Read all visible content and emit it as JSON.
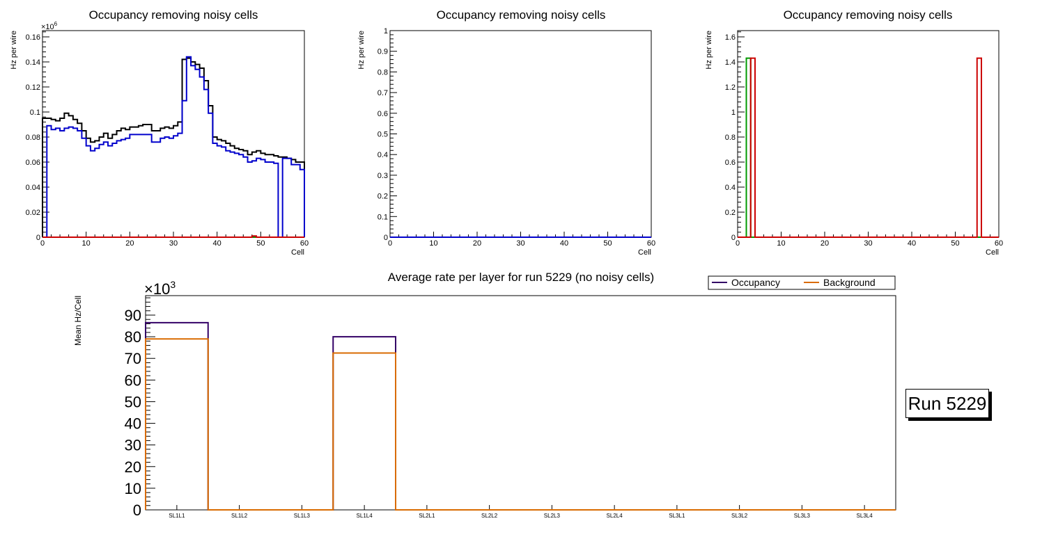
{
  "colors": {
    "black": "#000000",
    "blue": "#0000cc",
    "green": "#009900",
    "red": "#cc0000",
    "purple": "#330066",
    "orange": "#d96b00"
  },
  "run_label": "Run 5229",
  "chart_data": [
    {
      "type": "line",
      "title": "Occupancy removing noisy cells",
      "xlabel": "Cell",
      "ylabel": "Hz per wire",
      "xlim": [
        0,
        60
      ],
      "ylim": [
        0,
        0.165
      ],
      "exponent": "6",
      "xticks": [
        0,
        10,
        20,
        30,
        40,
        50,
        60
      ],
      "xtick_labels": [
        "0",
        "10",
        "20",
        "30",
        "40",
        "50",
        "60"
      ],
      "yticks": [
        0,
        0.02,
        0.04,
        0.06,
        0.08,
        0.1,
        0.12,
        0.14,
        0.16
      ],
      "ytick_labels": [
        "0",
        "0.02",
        "0.04",
        "0.06",
        "0.08",
        "0.1",
        "0.12",
        "0.14",
        "0.16"
      ],
      "series": [
        {
          "name": "black",
          "color": "#000000",
          "values": [
            0.095,
            0.095,
            0.094,
            0.093,
            0.095,
            0.099,
            0.097,
            0.094,
            0.091,
            0.085,
            0.079,
            0.076,
            0.077,
            0.08,
            0.083,
            0.079,
            0.082,
            0.085,
            0.087,
            0.086,
            0.088,
            0.088,
            0.089,
            0.09,
            0.09,
            0.085,
            0.085,
            0.087,
            0.088,
            0.087,
            0.089,
            0.092,
            0.142,
            0.143,
            0.14,
            0.138,
            0.135,
            0.125,
            0.105,
            0.08,
            0.078,
            0.077,
            0.075,
            0.073,
            0.071,
            0.07,
            0.069,
            0.066,
            0.068,
            0.069,
            0.067,
            0.066,
            0.066,
            0.065,
            0.064,
            0.064,
            0.063,
            0.062,
            0.06,
            0.06
          ]
        },
        {
          "name": "blue",
          "color": "#0000cc",
          "values": [
            0.0,
            0.089,
            0.086,
            0.087,
            0.085,
            0.087,
            0.088,
            0.087,
            0.085,
            0.079,
            0.073,
            0.069,
            0.071,
            0.074,
            0.076,
            0.073,
            0.075,
            0.077,
            0.078,
            0.079,
            0.082,
            0.082,
            0.082,
            0.082,
            0.082,
            0.076,
            0.076,
            0.079,
            0.08,
            0.079,
            0.081,
            0.083,
            0.109,
            0.144,
            0.137,
            0.134,
            0.128,
            0.118,
            0.099,
            0.075,
            0.073,
            0.072,
            0.069,
            0.068,
            0.067,
            0.066,
            0.064,
            0.06,
            0.061,
            0.063,
            0.062,
            0.06,
            0.06,
            0.059,
            0.0,
            0.063,
            0.063,
            0.058,
            0.058,
            0.054
          ]
        },
        {
          "name": "green",
          "color": "#009900",
          "values": [
            0,
            0,
            0,
            0,
            0,
            0,
            0,
            0,
            0,
            0,
            0,
            0,
            0,
            0,
            0,
            0,
            0,
            0,
            0,
            0,
            0,
            0,
            0,
            0,
            0,
            0,
            0,
            0,
            0,
            0,
            0,
            0,
            0,
            0,
            0,
            0,
            0,
            0,
            0,
            0,
            0,
            0,
            0,
            0,
            0,
            0,
            0,
            0,
            0,
            0,
            0,
            0,
            0,
            0,
            0,
            0,
            0,
            0,
            0,
            0
          ]
        },
        {
          "name": "red",
          "color": "#cc0000",
          "values": [
            0,
            0,
            0,
            0,
            0,
            0,
            0,
            0,
            0,
            0,
            0,
            0,
            0,
            0,
            0,
            0,
            0,
            0,
            0,
            0,
            0,
            0,
            0,
            0,
            0,
            0,
            0,
            0,
            0,
            0,
            0,
            0,
            0,
            0,
            0,
            0,
            0,
            0,
            0,
            0,
            0,
            0,
            0,
            0,
            0,
            0,
            0,
            0,
            0.001,
            0,
            0,
            0,
            0,
            0,
            0,
            0,
            0,
            0,
            0,
            0
          ]
        }
      ]
    },
    {
      "type": "line",
      "title": "Occupancy removing noisy cells",
      "xlabel": "Cell",
      "ylabel": "Hz per wire",
      "xlim": [
        0,
        60
      ],
      "ylim": [
        0,
        1
      ],
      "exponent": "",
      "xticks": [
        0,
        10,
        20,
        30,
        40,
        50,
        60
      ],
      "xtick_labels": [
        "0",
        "10",
        "20",
        "30",
        "40",
        "50",
        "60"
      ],
      "yticks": [
        0,
        0.1,
        0.2,
        0.3,
        0.4,
        0.5,
        0.6,
        0.7,
        0.8,
        0.9,
        1
      ],
      "ytick_labels": [
        "0",
        "0.1",
        "0.2",
        "0.3",
        "0.4",
        "0.5",
        "0.6",
        "0.7",
        "0.8",
        "0.9",
        "1"
      ],
      "series": [
        {
          "name": "blue",
          "color": "#0000cc",
          "values": [
            0,
            0,
            0,
            0,
            0,
            0,
            0,
            0,
            0,
            0,
            0,
            0,
            0,
            0,
            0,
            0,
            0,
            0,
            0,
            0,
            0,
            0,
            0,
            0,
            0,
            0,
            0,
            0,
            0,
            0,
            0,
            0,
            0,
            0,
            0,
            0,
            0,
            0,
            0,
            0,
            0,
            0,
            0,
            0,
            0,
            0,
            0,
            0,
            0,
            0,
            0,
            0,
            0,
            0,
            0,
            0,
            0,
            0,
            0,
            0
          ]
        }
      ]
    },
    {
      "type": "line",
      "title": "Occupancy removing noisy cells",
      "xlabel": "Cell",
      "ylabel": "Hz per wire",
      "xlim": [
        0,
        60
      ],
      "ylim": [
        0,
        1.65
      ],
      "exponent": "",
      "xticks": [
        0,
        10,
        20,
        30,
        40,
        50,
        60
      ],
      "xtick_labels": [
        "0",
        "10",
        "20",
        "30",
        "40",
        "50",
        "60"
      ],
      "yticks": [
        0,
        0.2,
        0.4,
        0.6,
        0.8,
        1,
        1.2,
        1.4,
        1.6
      ],
      "ytick_labels": [
        "0",
        "0.2",
        "0.4",
        "0.6",
        "0.8",
        "1",
        "1.2",
        "1.4",
        "1.6"
      ],
      "series": [
        {
          "name": "blue",
          "color": "#0000cc",
          "values": [
            0,
            0,
            0,
            0,
            0,
            0,
            0,
            0,
            0,
            0,
            0,
            0,
            0,
            0,
            0,
            0,
            0,
            0,
            0,
            0,
            0,
            0,
            0,
            0,
            0,
            0,
            0,
            0,
            0,
            0,
            0,
            0,
            0,
            0,
            0,
            0,
            0,
            0,
            0,
            0,
            0,
            0,
            0,
            0,
            0,
            0,
            0,
            0,
            0,
            0,
            0,
            0,
            0,
            0,
            0,
            0,
            0,
            0,
            0,
            0
          ]
        },
        {
          "name": "green",
          "color": "#009900",
          "values": [
            0,
            0,
            1.43,
            0,
            0,
            0,
            0,
            0,
            0,
            0,
            0,
            0,
            0,
            0,
            0,
            0,
            0,
            0,
            0,
            0,
            0,
            0,
            0,
            0,
            0,
            0,
            0,
            0,
            0,
            0,
            0,
            0,
            0,
            0,
            0,
            0,
            0,
            0,
            0,
            0,
            0,
            0,
            0,
            0,
            0,
            0,
            0,
            0,
            0,
            0,
            0,
            0,
            0,
            0,
            0,
            0,
            0,
            0,
            0,
            0
          ]
        },
        {
          "name": "red",
          "color": "#cc0000",
          "values": [
            0,
            0,
            0,
            1.43,
            0,
            0,
            0,
            0,
            0,
            0,
            0,
            0,
            0,
            0,
            0,
            0,
            0,
            0,
            0,
            0,
            0,
            0,
            0,
            0,
            0,
            0,
            0,
            0,
            0,
            0,
            0,
            0,
            0,
            0,
            0,
            0,
            0,
            0,
            0,
            0,
            0,
            0,
            0,
            0,
            0,
            0,
            0,
            0,
            0,
            0,
            0,
            0,
            0,
            0,
            0,
            1.43,
            0,
            0,
            0,
            0
          ]
        }
      ]
    },
    {
      "type": "bar",
      "title": "Average rate per layer for run 5229 (no noisy cells)",
      "xlabel": "",
      "ylabel": "Mean Hz/Cell",
      "exponent": "3",
      "ylim": [
        0,
        99
      ],
      "categories": [
        "SL1L1",
        "SL1L2",
        "SL1L3",
        "SL1L4",
        "SL2L1",
        "SL2L2",
        "SL2L3",
        "SL2L4",
        "SL3L1",
        "SL3L2",
        "SL3L3",
        "SL3L4"
      ],
      "yticks": [
        0,
        10,
        20,
        30,
        40,
        50,
        60,
        70,
        80,
        90
      ],
      "ytick_labels": [
        "0",
        "10",
        "20",
        "30",
        "40",
        "50",
        "60",
        "70",
        "80",
        "90"
      ],
      "legend_position": "top-right",
      "series": [
        {
          "name": "Occupancy",
          "color": "#330066",
          "values": [
            86.5,
            0,
            0,
            80,
            0,
            0,
            0,
            0,
            0,
            0,
            0,
            0
          ]
        },
        {
          "name": "Background",
          "color": "#d96b00",
          "values": [
            79,
            0,
            0,
            72.5,
            0,
            0,
            0,
            0,
            0,
            0,
            0,
            0
          ]
        }
      ]
    }
  ]
}
